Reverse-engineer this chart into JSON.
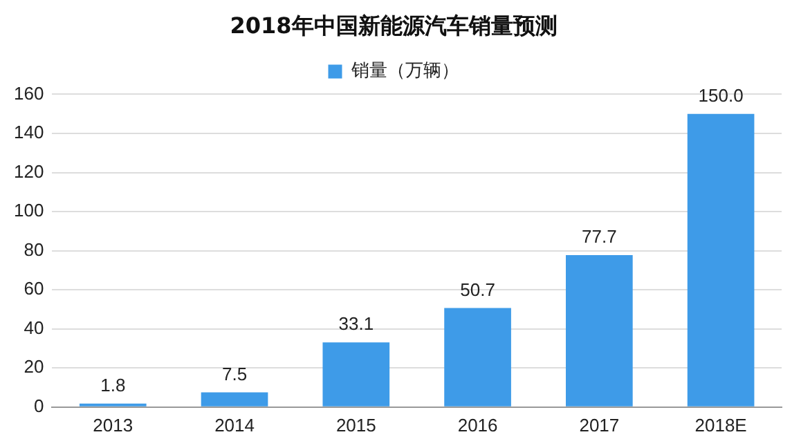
{
  "chart_data": {
    "type": "bar",
    "title": "2018年中国新能源汽车销量预测",
    "categories": [
      "2013",
      "2014",
      "2015",
      "2016",
      "2017",
      "2018E"
    ],
    "series": [
      {
        "name": "销量（万辆）",
        "color": "#3e9be8",
        "values": [
          1.8,
          7.5,
          33.1,
          50.7,
          77.7,
          150.0
        ],
        "value_labels": [
          "1.8",
          "7.5",
          "33.1",
          "50.7",
          "77.7",
          "150.0"
        ]
      }
    ],
    "ylim": [
      0,
      160
    ],
    "yticks": [
      0,
      20,
      40,
      60,
      80,
      100,
      120,
      140,
      160
    ],
    "grid": "y",
    "legend": "top"
  }
}
